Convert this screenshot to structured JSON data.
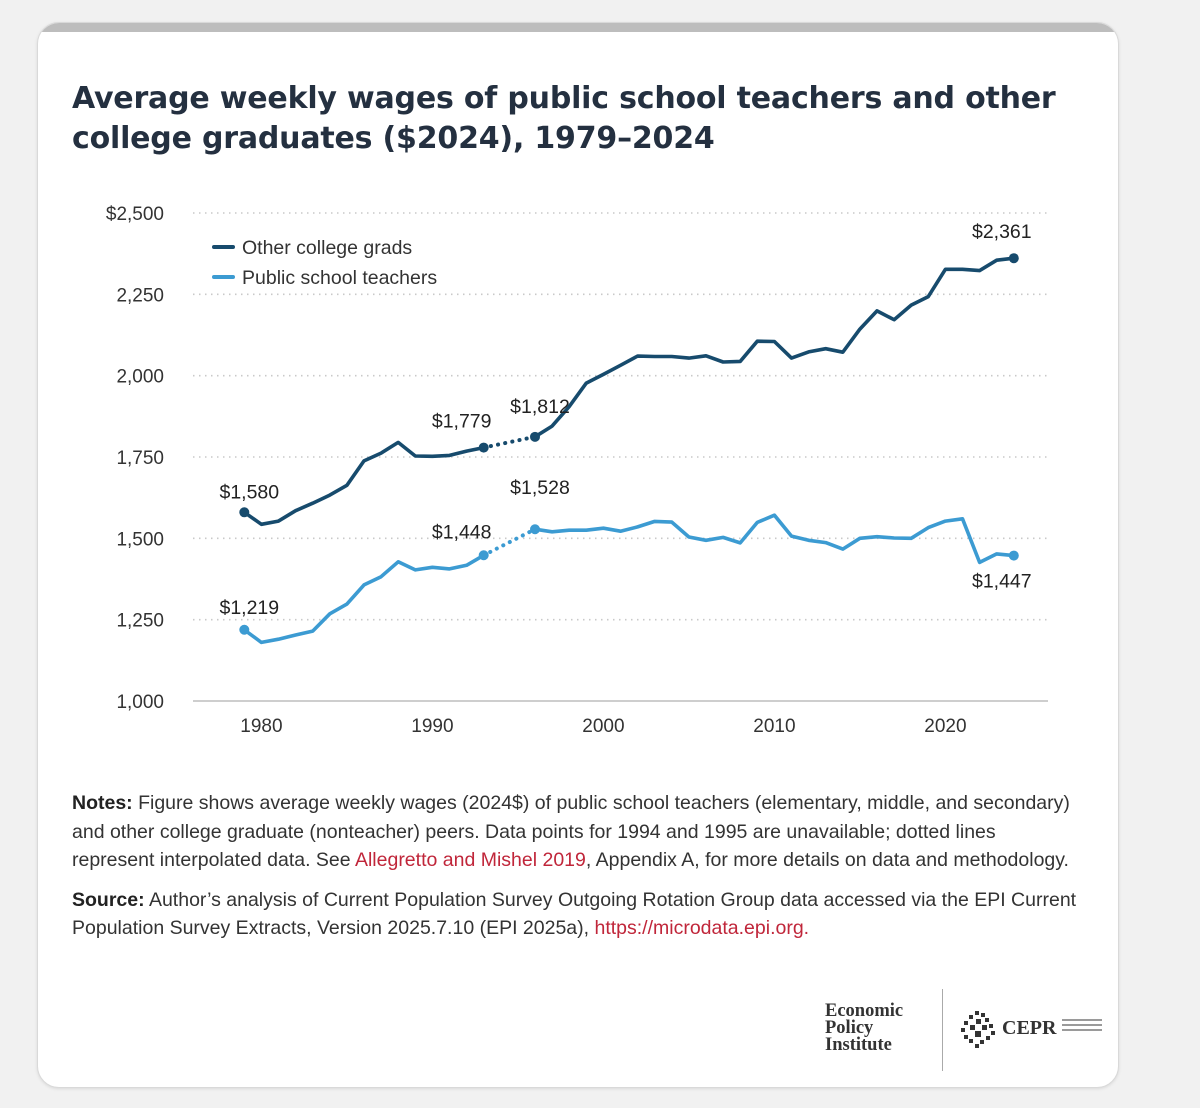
{
  "title": "Average weekly wages of public school teachers and other college graduates ($2024), 1979–2024",
  "chart_data": {
    "type": "line",
    "title": "Average weekly wages of public school teachers and other college graduates ($2024), 1979–2024",
    "xlim": [
      1976,
      2026
    ],
    "ylim": [
      1000,
      2500
    ],
    "x_ticks": [
      1980,
      1990,
      2000,
      2010,
      2020
    ],
    "y_ticks": [
      1000,
      1250,
      1500,
      1750,
      2000,
      2250,
      2500
    ],
    "y_tick_labels": [
      "1,000",
      "1,250",
      "1,500",
      "1,750",
      "2,000",
      "2,250",
      "$2,500"
    ],
    "grid": "horizontal dotted",
    "legend_position": "top-left",
    "interpolated_years": [
      1994,
      1995
    ],
    "series": [
      {
        "name": "Other college grads",
        "color": "#174b6d",
        "x": [
          1979,
          1980,
          1981,
          1982,
          1983,
          1984,
          1985,
          1986,
          1987,
          1988,
          1989,
          1990,
          1991,
          1992,
          1993,
          1996,
          1997,
          1998,
          1999,
          2000,
          2001,
          2002,
          2003,
          2004,
          2005,
          2006,
          2007,
          2008,
          2009,
          2010,
          2011,
          2012,
          2013,
          2014,
          2015,
          2016,
          2017,
          2018,
          2019,
          2020,
          2021,
          2022,
          2023,
          2024
        ],
        "y": [
          1580,
          1543,
          1553,
          1585,
          1608,
          1633,
          1663,
          1738,
          1762,
          1795,
          1753,
          1752,
          1755,
          1768,
          1779,
          1812,
          1845,
          1905,
          1977,
          2004,
          2032,
          2060,
          2059,
          2059,
          2054,
          2061,
          2042,
          2044,
          2106,
          2105,
          2054,
          2073,
          2083,
          2072,
          2143,
          2199,
          2172,
          2217,
          2243,
          2327,
          2327,
          2323,
          2355,
          2361
        ]
      },
      {
        "name": "Public school teachers",
        "color": "#3c9bd2",
        "x": [
          1979,
          1980,
          1981,
          1982,
          1983,
          1984,
          1985,
          1986,
          1987,
          1988,
          1989,
          1990,
          1991,
          1992,
          1993,
          1996,
          1997,
          1998,
          1999,
          2000,
          2001,
          2002,
          2003,
          2004,
          2005,
          2006,
          2007,
          2008,
          2009,
          2010,
          2011,
          2012,
          2013,
          2014,
          2015,
          2016,
          2017,
          2018,
          2019,
          2020,
          2021,
          2022,
          2023,
          2024
        ],
        "y": [
          1219,
          1180,
          1190,
          1203,
          1215,
          1268,
          1298,
          1357,
          1382,
          1428,
          1403,
          1411,
          1406,
          1417,
          1448,
          1528,
          1520,
          1525,
          1525,
          1531,
          1522,
          1535,
          1552,
          1550,
          1504,
          1494,
          1503,
          1486,
          1549,
          1571,
          1507,
          1494,
          1487,
          1467,
          1500,
          1505,
          1501,
          1500,
          1533,
          1553,
          1560,
          1426,
          1452,
          1447
        ]
      }
    ],
    "annotations": [
      {
        "series": "Other college grads",
        "x": 1979,
        "label": "$1,580"
      },
      {
        "series": "Other college grads",
        "x": 1993,
        "label": "$1,779"
      },
      {
        "series": "Other college grads",
        "x": 1996,
        "label": "$1,812"
      },
      {
        "series": "Other college grads",
        "x": 2024,
        "label": "$2,361"
      },
      {
        "series": "Public school teachers",
        "x": 1979,
        "label": "$1,219"
      },
      {
        "series": "Public school teachers",
        "x": 1993,
        "label": "$1,448"
      },
      {
        "series": "Public school teachers",
        "x": 1996,
        "label": "$1,528"
      },
      {
        "series": "Public school teachers",
        "x": 2024,
        "label": "$1,447"
      }
    ]
  },
  "notes": {
    "label": "Notes:",
    "text_before_link": " Figure shows average weekly wages (2024$) of public school teachers (elementary, middle, and secondary) and other college graduate (nonteacher) peers. Data points for 1994 and 1995 are unavailable; dotted lines represent interpolated data. See ",
    "link_text": "Allegretto and Mishel 2019",
    "text_after_link": ", Appendix A, for more details on data and methodology."
  },
  "source": {
    "label": "Source:",
    "text": " Author’s analysis of Current Population Survey Outgoing Rotation Group data accessed via the EPI Current Population Survey Extracts, Version 2025.7.10 (EPI 2025a), ",
    "link_text": "https://microdata.epi.org",
    "after": "."
  },
  "logos": {
    "epi": [
      "Economic",
      "Policy",
      "Institute"
    ],
    "cepr": "CEPR"
  }
}
